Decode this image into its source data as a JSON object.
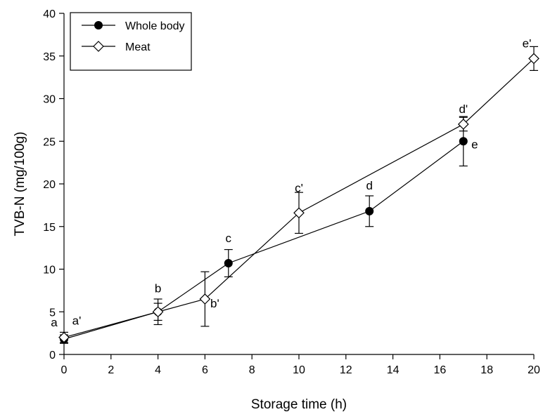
{
  "chart_data": {
    "type": "line",
    "xlabel": "Storage time (h)",
    "ylabel": "TVB-N (mg/100g)",
    "xlim": [
      0,
      20
    ],
    "ylim": [
      0,
      40
    ],
    "xticks": [
      0,
      2,
      4,
      6,
      8,
      10,
      12,
      14,
      16,
      18,
      20
    ],
    "yticks": [
      0,
      5,
      10,
      15,
      20,
      25,
      30,
      35,
      40
    ],
    "grid": false,
    "legend_position": "top-left",
    "series": [
      {
        "name": "Whole body",
        "marker": "filled-circle",
        "x": [
          0,
          4,
          7,
          13,
          17
        ],
        "y": [
          1.8,
          5.0,
          10.7,
          16.8,
          25.0
        ],
        "error": [
          0.5,
          1.5,
          1.6,
          1.8,
          2.9
        ],
        "labels": [
          "a",
          "b",
          "c",
          "d",
          "e"
        ]
      },
      {
        "name": "Meat",
        "marker": "open-diamond",
        "x": [
          0,
          4,
          6,
          10,
          17,
          20
        ],
        "y": [
          2.0,
          5.0,
          6.5,
          16.6,
          27.0,
          34.7
        ],
        "error": [
          0.6,
          1.0,
          3.2,
          2.4,
          0.8,
          1.4
        ],
        "labels": [
          "a'",
          "",
          "b'",
          "c'",
          "d'",
          "e'"
        ]
      }
    ]
  }
}
